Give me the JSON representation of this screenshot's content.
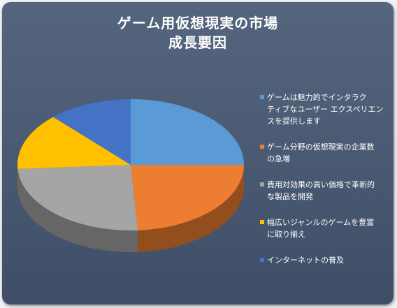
{
  "chart_data": {
    "type": "pie",
    "title_line1": "ゲーム用仮想現実の市場",
    "title_line2": "成長要因",
    "categories": [
      "ゲームは魅力的でインタラクティブなユーザー エクスペリエンスを提供します",
      "ゲーム分野の仮想現実の企業数の急増",
      "費用対効果の高い価格で革新的な製品を開発",
      "幅広いジャンルのゲームを豊富に取り揃え",
      "インターネットの普及"
    ],
    "legend_lines": [
      [
        "ゲームは魅力的でインタラク",
        "ティブなユーザー エクスペリエン",
        "スを提供します"
      ],
      [
        "ゲーム分野の仮想現実の企業数",
        "の急増"
      ],
      [
        "費用対効果の高い価格で革新的",
        "な製品を開発"
      ],
      [
        "幅広いジャンルのゲームを豊富",
        "に取り揃え"
      ],
      [
        "インターネットの普及"
      ]
    ],
    "values": [
      25,
      24,
      25,
      14,
      12
    ],
    "colors": [
      "#5b9bd5",
      "#ed7d31",
      "#a5a5a5",
      "#ffc000",
      "#4472c4"
    ],
    "start_angle_deg": -90,
    "legend_position": "right",
    "style": "3d"
  }
}
